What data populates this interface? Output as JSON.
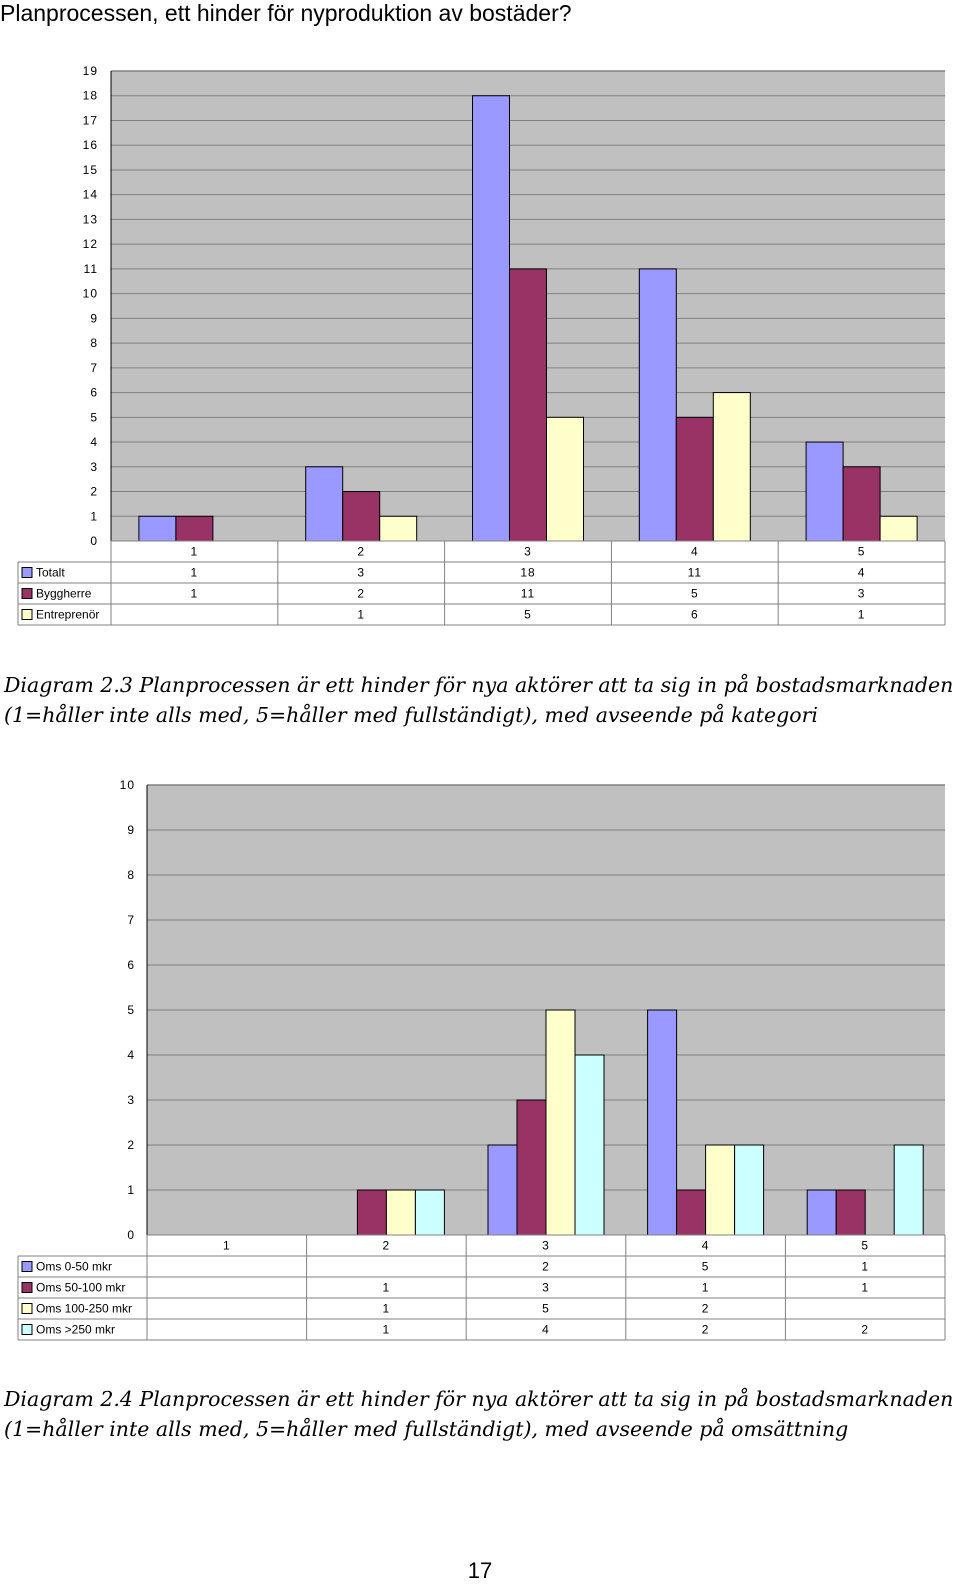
{
  "header": {
    "title": "Planprocessen, ett hinder för nyproduktion av bostäder?"
  },
  "chart_data": [
    {
      "type": "bar",
      "categories": [
        "1",
        "2",
        "3",
        "4",
        "5"
      ],
      "series": [
        {
          "name": "Totalt",
          "values": [
            1,
            3,
            18,
            11,
            4
          ],
          "color": "#9999ff"
        },
        {
          "name": "Byggherre",
          "values": [
            1,
            2,
            11,
            5,
            3
          ],
          "color": "#993366"
        },
        {
          "name": "Entreprenör",
          "values": [
            null,
            1,
            5,
            6,
            1
          ],
          "color": "#ffffcc"
        }
      ],
      "ylim": [
        0,
        19
      ],
      "yticks": [
        0,
        1,
        2,
        3,
        4,
        5,
        6,
        7,
        8,
        9,
        10,
        11,
        12,
        13,
        14,
        15,
        16,
        17,
        18,
        19
      ],
      "grid": true,
      "plot_background": "#c0c0c0",
      "legend": "data table below plot"
    },
    {
      "type": "bar",
      "categories": [
        "1",
        "2",
        "3",
        "4",
        "5"
      ],
      "series": [
        {
          "name": "Oms 0-50 mkr",
          "values": [
            null,
            null,
            2,
            5,
            1
          ],
          "color": "#9999ff"
        },
        {
          "name": "Oms 50-100 mkr",
          "values": [
            null,
            1,
            3,
            1,
            1
          ],
          "color": "#993366"
        },
        {
          "name": "Oms 100-250 mkr",
          "values": [
            null,
            1,
            5,
            2,
            null
          ],
          "color": "#ffffcc"
        },
        {
          "name": "Oms >250 mkr",
          "values": [
            null,
            1,
            4,
            2,
            2
          ],
          "color": "#ccffff"
        }
      ],
      "ylim": [
        0,
        10
      ],
      "yticks": [
        0,
        1,
        2,
        3,
        4,
        5,
        6,
        7,
        8,
        9,
        10
      ],
      "grid": true,
      "plot_background": "#c0c0c0",
      "legend": "data table below plot"
    }
  ],
  "captions": [
    {
      "line1": "Diagram 2.3 Planprocessen är ett hinder för nya aktörer att ta sig in på bostadsmarknaden",
      "line2": "(1=håller inte alls med, 5=håller med fullständigt), med avseende på kategori"
    },
    {
      "line1": "Diagram 2.4 Planprocessen är ett hinder för nya aktörer att ta sig in på bostadsmarknaden",
      "line2": "(1=håller inte alls med, 5=håller med fullständigt), med avseende på omsättning"
    }
  ],
  "footer": {
    "page_number": "17"
  }
}
